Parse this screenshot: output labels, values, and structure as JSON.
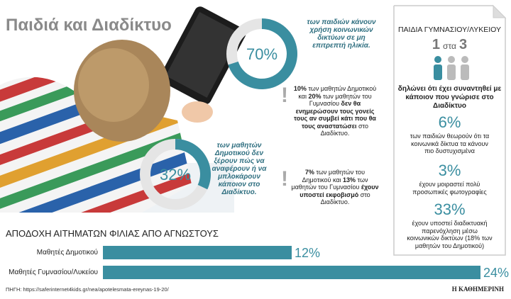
{
  "title": "Παιδιά και Διαδίκτυο",
  "chart_data": [
    {
      "type": "donut",
      "values": [
        70
      ],
      "value_labels": [
        "70%"
      ],
      "color": "#3a8ea0",
      "caption": "των παιδιών κάνουν χρήση κοινωνικών δικτύων σε μη επιτρεπτή ηλικία."
    },
    {
      "type": "donut",
      "values": [
        32
      ],
      "value_labels": [
        "32%"
      ],
      "color": "#3a8ea0",
      "caption": "των μαθητών Δημοτικού δεν ξέρουν πώς να αναφέρουν ή να μπλοκάρουν κάποιον στο Διαδίκτυο."
    },
    {
      "type": "bar",
      "title": "ΑΠΟΔΟΧΗ ΑΙΤΗΜΑΤΩΝ ΦΙΛΙΑΣ ΑΠΟ ΑΓΝΩΣΤΟΥΣ",
      "categories": [
        "Μαθητές Δημοτικού",
        "Μαθητές Γυμνασίου/Λυκείου"
      ],
      "values": [
        12,
        24
      ],
      "value_labels": [
        "12%",
        "24%"
      ],
      "color": "#3a8ea0"
    }
  ],
  "notes": [
    [
      {
        "text": "10%",
        "bold": true
      },
      {
        "text": " των μαθητών Δημοτικού και ",
        "bold": false
      },
      {
        "text": "20%",
        "bold": true
      },
      {
        "text": " των μαθητών του Γυμνασίου ",
        "bold": false
      },
      {
        "text": "δεν θα ενημερώσουν τους γονείς τους αν συμβεί κάτι που θα τους αναστατώσει",
        "bold": true
      },
      {
        "text": " στο Διαδίκτυο.",
        "bold": false
      }
    ],
    [
      {
        "text": "7%",
        "bold": true
      },
      {
        "text": " των μαθητών του Δημοτικού και ",
        "bold": false
      },
      {
        "text": "13%",
        "bold": true
      },
      {
        "text": " των μαθητών του Γυμνασίου ",
        "bold": false
      },
      {
        "text": "έχουν υποστεί εκφοβισμό",
        "bold": true
      },
      {
        "text": " στο Διαδίκτυο.",
        "bold": false
      }
    ]
  ],
  "panel": {
    "heading": "ΠΑΙΔΙΑ ΓΥΜΝΑΣΙΟΥ/ΛΥΚΕΙΟΥ",
    "ratio": [
      "1",
      "στα",
      "3"
    ],
    "ratio_text": "δηλώνει ότι έχει συναντηθεί με κάποιον που γνώρισε στο Διαδίκτυο",
    "stats": [
      {
        "value": "6%",
        "text": "των παιδιών θεωρούν ότι τα κοινωνικά δίκτυα τα κάνουν πιο δυστυχισμένα"
      },
      {
        "value": "3%",
        "text": "έχουν μοιραστεί πολύ προσωπικές φωτογραφίες"
      },
      {
        "value": "33%",
        "text": "έχουν υποστεί διαδικτυακή παρενόχληση μέσω κοινωνικών δικτύων (18% των μαθητών του Δημοτικού)"
      }
    ]
  },
  "source": "ΠΗΓΗ: https://saferinternet4kids.gr/nea/apotelesmata-ereynas-19-20/",
  "publisher": "Η ΚΑΘΗΜΕΡΙΝΗ"
}
